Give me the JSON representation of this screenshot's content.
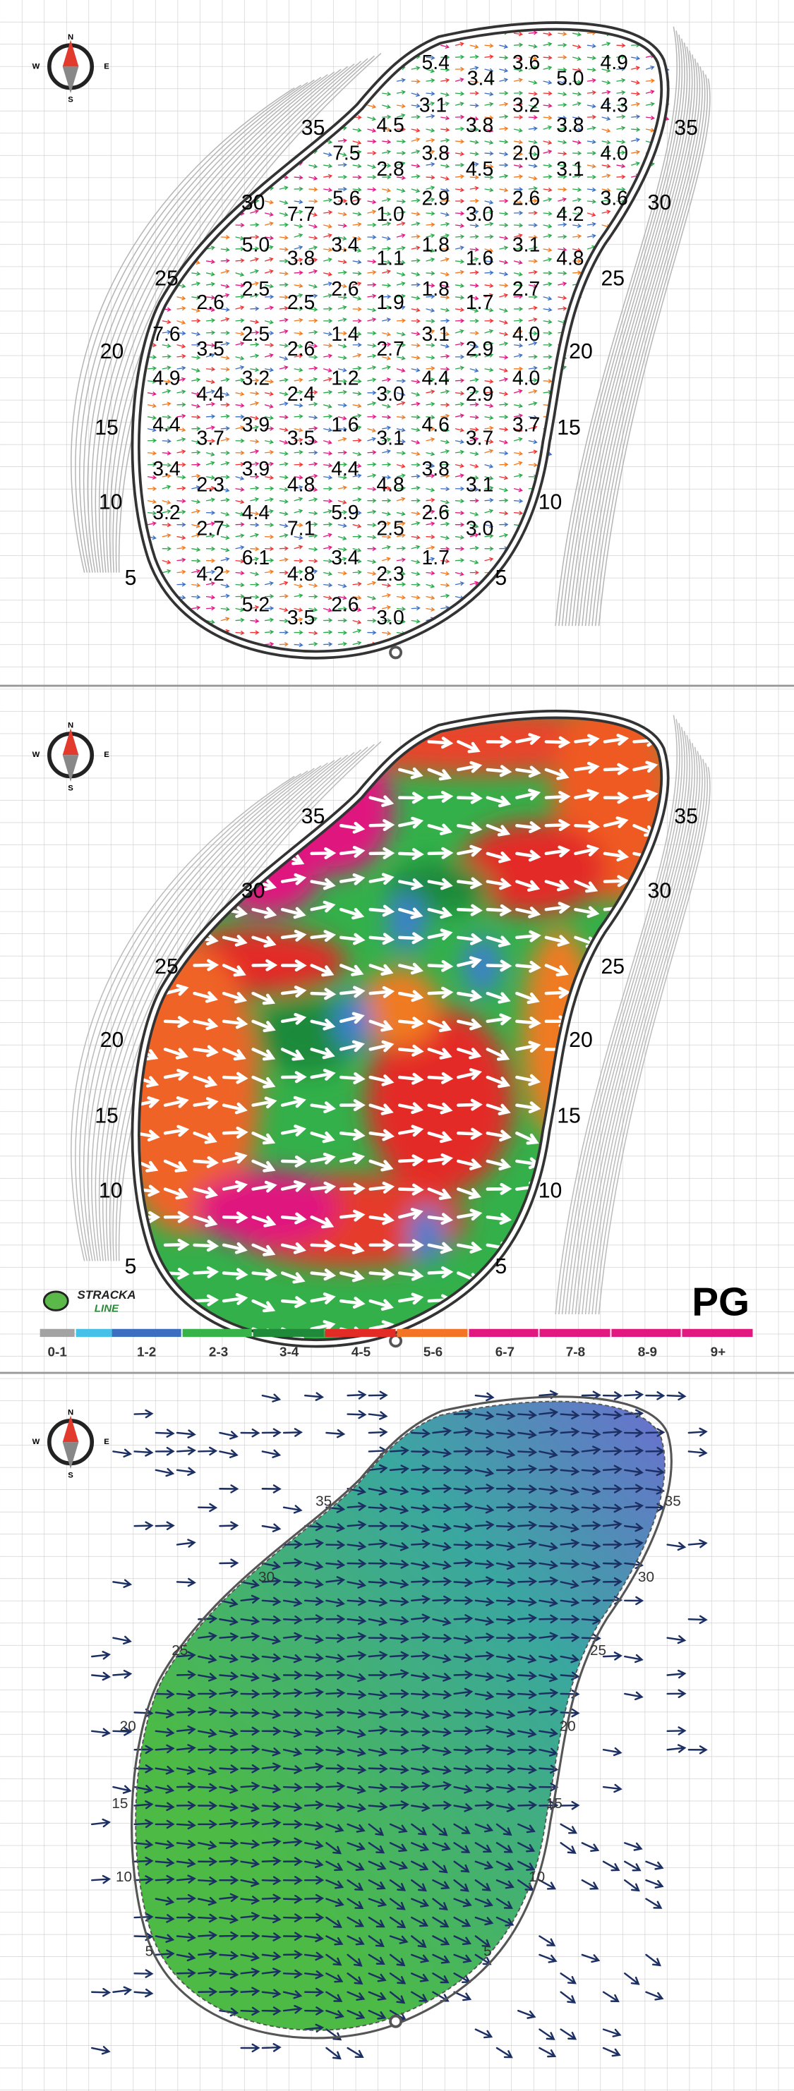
{
  "compass": {
    "n": "N",
    "e": "E",
    "s": "S",
    "w": "W"
  },
  "yardage_labels": [
    "35",
    "30",
    "25",
    "20",
    "15",
    "10",
    "5"
  ],
  "panel_1": {
    "slope_rows": [
      [
        "5.4",
        "3.6",
        "4.9"
      ],
      [
        "3.4",
        "5.0"
      ],
      [
        "3.1",
        "3.2",
        "4.3"
      ],
      [
        "4.5",
        "3.8",
        "3.8"
      ],
      [
        "7.5",
        "3.8",
        "2.0",
        "4.0"
      ],
      [
        "2.8",
        "4.5",
        "3.1"
      ],
      [
        "5.6",
        "2.9",
        "2.6",
        "3.6"
      ],
      [
        "7.7",
        "1.0",
        "3.0",
        "4.2"
      ],
      [
        "5.0",
        "3.4",
        "1.8",
        "3.1"
      ],
      [
        "3.8",
        "1.1",
        "1.6",
        "4.8"
      ],
      [
        "2.5",
        "2.6",
        "1.8",
        "2.7"
      ],
      [
        "2.6",
        "2.5",
        "1.9",
        "1.7"
      ],
      [
        "7.6",
        "2.5",
        "1.4",
        "3.1",
        "4.0"
      ],
      [
        "3.5",
        "2.6",
        "2.7",
        "2.9"
      ],
      [
        "4.9",
        "3.2",
        "1.2",
        "4.4",
        "4.0"
      ],
      [
        "4.4",
        "2.4",
        "3.0",
        "2.9"
      ],
      [
        "4.4",
        "3.9",
        "1.6",
        "4.6",
        "3.7"
      ],
      [
        "3.7",
        "3.5",
        "3.1",
        "3.7"
      ],
      [
        "3.4",
        "3.9",
        "4.4",
        "3.8"
      ],
      [
        "2.3",
        "4.8",
        "4.8",
        "3.1"
      ],
      [
        "3.2",
        "4.4",
        "5.9",
        "2.6"
      ],
      [
        "2.7",
        "7.1",
        "2.5",
        "3.0"
      ],
      [
        "6.1",
        "3.4",
        "1.7"
      ],
      [
        "4.2",
        "4.8",
        "2.3"
      ],
      [
        "5.2",
        "2.6"
      ],
      [
        "3.5",
        "3.0"
      ]
    ]
  },
  "panel_2": {
    "logo": [
      "STRACKA",
      "LINE"
    ],
    "title": "PG",
    "legend": [
      {
        "label": "0-1",
        "color": "#a3a3a3"
      },
      {
        "label": "1-2",
        "color": "#3d6fc1"
      },
      {
        "label": "2-3",
        "color": "#36b44a"
      },
      {
        "label": "3-4",
        "color": "#1f8a3a"
      },
      {
        "label": "4-5",
        "color": "#e32b26"
      },
      {
        "label": "5-6",
        "color": "#f27424"
      },
      {
        "label": "6-7",
        "color": "#e0187f"
      },
      {
        "label": "7-8",
        "color": "#e0187f"
      },
      {
        "label": "8-9",
        "color": "#e0187f"
      },
      {
        "label": "9+",
        "color": "#e0187f"
      }
    ]
  }
}
